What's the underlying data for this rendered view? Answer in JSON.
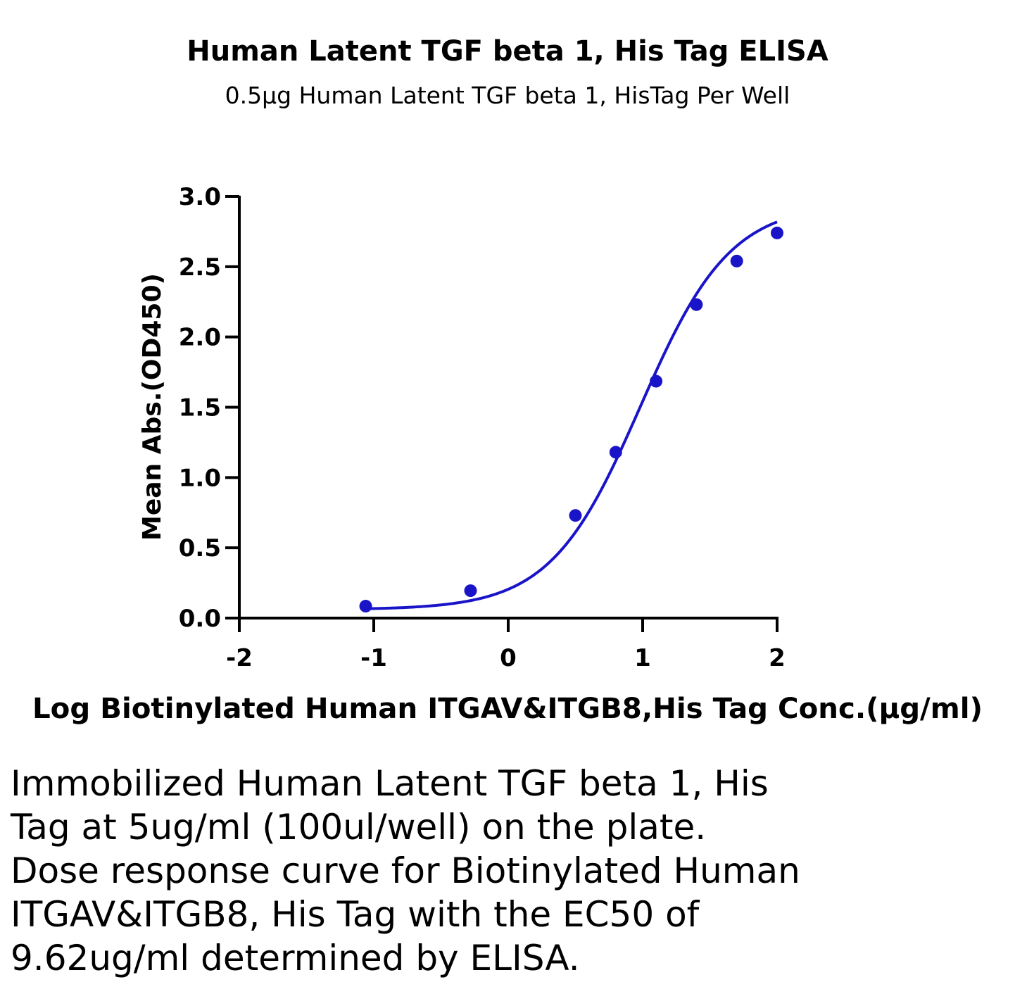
{
  "chart_data": {
    "type": "line",
    "title": "Human Latent TGF beta 1, His Tag ELISA",
    "subtitle": "0.5μg Human Latent TGF beta 1, HisTag Per Well",
    "xlabel": "Log Biotinylated Human ITGAV&ITGB8,His Tag Conc.(μg/ml)",
    "ylabel": "Mean Abs.(OD450)",
    "xlim": [
      -2,
      2
    ],
    "ylim": [
      0,
      3.0
    ],
    "x_ticks": [
      "-2",
      "-1",
      "0",
      "1",
      "2"
    ],
    "y_ticks": [
      "0.0",
      "0.5",
      "1.0",
      "1.5",
      "2.0",
      "2.5",
      "3.0"
    ],
    "grid": false,
    "legend": "none",
    "series": [
      {
        "color": "#1a14c8",
        "x": [
          -1.06,
          -0.28,
          0.5,
          0.8,
          1.1,
          1.4,
          1.7,
          2.0
        ],
        "y": [
          0.085,
          0.195,
          0.73,
          1.18,
          1.685,
          2.23,
          2.54,
          2.74
        ],
        "fit": {
          "model": "4PL",
          "bottom": 0.06,
          "top": 2.95,
          "ec50_log": 0.983,
          "hill": 1.3
        }
      }
    ],
    "caption_lines": [
      "Immobilized Human Latent TGF beta 1, His",
      "Tag at 5ug/ml (100ul/well) on the plate.",
      "Dose response curve for Biotinylated Human",
      "ITGAV&ITGB8, His Tag with the EC50 of",
      "9.62ug/ml determined by ELISA."
    ]
  }
}
